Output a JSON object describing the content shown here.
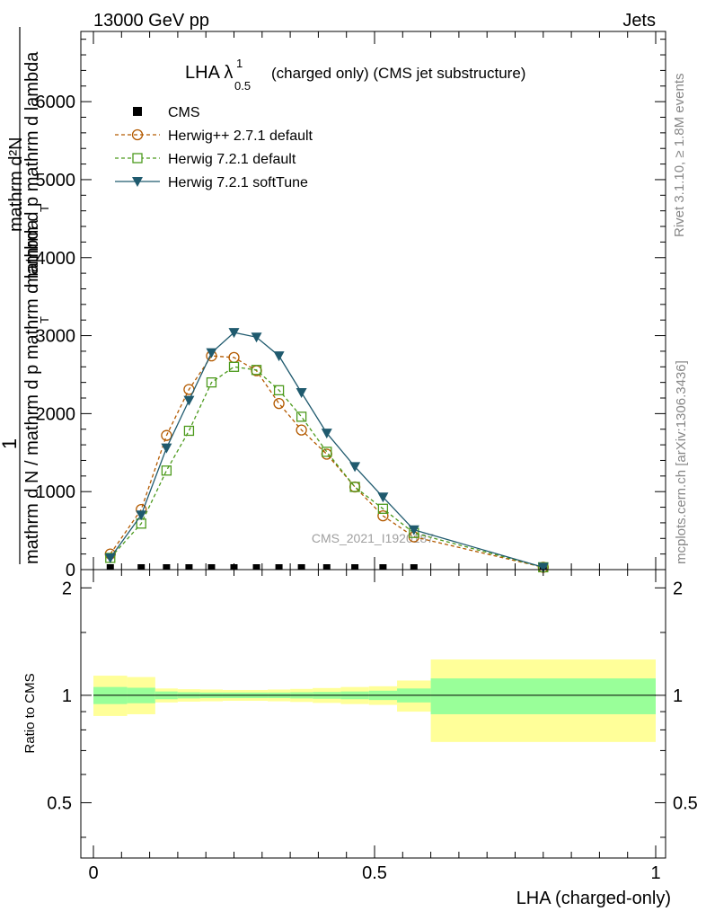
{
  "header": {
    "left": "13000 GeV pp",
    "right": "Jets"
  },
  "side": {
    "rivet": "Rivet 3.1.10, ≥ 1.8M events",
    "mcplots": "mcplots.cern.ch [arXiv:1306.3436]"
  },
  "watermark": "CMS_2021_I1920187",
  "chart_data": [
    {
      "type": "line",
      "title": "LHA λ",
      "title_sup": "1",
      "title_sub": "0.5",
      "title_rest": "(charged only) (CMS jet substructure)",
      "ylabel_num": "1",
      "ylabel_den": "mathrm d N / mathrm d p mathrm d lambda",
      "ylabel_den_sub": "T",
      "ylabel_overlay_top": "mathrm d²N",
      "ylabel_overlay_bottom": "mathrm d p  mathrm d lambda",
      "ylabel_overlay_sub": "T",
      "xlim": [
        0,
        1
      ],
      "ylim": [
        0,
        6900
      ],
      "yticks": [
        0,
        1000,
        2000,
        3000,
        4000,
        5000,
        6000
      ],
      "ytick_labels": [
        "0",
        "1000",
        "2000",
        "3000",
        "4000",
        "5000",
        "6000"
      ],
      "legend_position": "top-left",
      "series": [
        {
          "name": "CMS",
          "color": "#000000",
          "marker": "filled-square",
          "line": "none",
          "x": [
            0.03,
            0.085,
            0.13,
            0.17,
            0.21,
            0.25,
            0.29,
            0.33,
            0.37,
            0.415,
            0.465,
            0.515,
            0.57,
            0.8
          ],
          "y": [
            0,
            0,
            0,
            0,
            0,
            0,
            0,
            0,
            0,
            0,
            0,
            0,
            0,
            0
          ]
        },
        {
          "name": "Herwig++ 2.7.1 default",
          "color": "#b35a00",
          "marker": "open-circle",
          "line": "dashed",
          "x": [
            0.03,
            0.085,
            0.13,
            0.17,
            0.21,
            0.25,
            0.29,
            0.33,
            0.37,
            0.415,
            0.465,
            0.515,
            0.57,
            0.8
          ],
          "y": [
            200,
            770,
            1720,
            2310,
            2740,
            2720,
            2550,
            2130,
            1790,
            1480,
            1060,
            690,
            420,
            30
          ]
        },
        {
          "name": "Herwig 7.2.1 default",
          "color": "#4c9a1c",
          "marker": "open-square",
          "line": "dashed",
          "x": [
            0.03,
            0.085,
            0.13,
            0.17,
            0.21,
            0.25,
            0.29,
            0.33,
            0.37,
            0.415,
            0.465,
            0.515,
            0.57,
            0.8
          ],
          "y": [
            150,
            590,
            1270,
            1780,
            2400,
            2600,
            2560,
            2300,
            1960,
            1510,
            1060,
            780,
            470,
            30
          ]
        },
        {
          "name": "Herwig 7.2.1 softTune",
          "color": "#1f5a6e",
          "marker": "filled-triangle-down",
          "line": "solid",
          "x": [
            0.03,
            0.085,
            0.13,
            0.17,
            0.21,
            0.25,
            0.29,
            0.33,
            0.37,
            0.415,
            0.465,
            0.515,
            0.57,
            0.8
          ],
          "y": [
            150,
            700,
            1560,
            2170,
            2780,
            3040,
            2980,
            2740,
            2270,
            1750,
            1320,
            930,
            510,
            30
          ]
        }
      ]
    },
    {
      "type": "area",
      "ylabel": "Ratio to CMS",
      "xlabel": "LHA (charged-only)",
      "xlim": [
        0,
        1
      ],
      "ylim": [
        0.35,
        2.25
      ],
      "yticks": [
        0.5,
        1,
        2
      ],
      "ytick_labels": [
        "0.5",
        "1",
        "2"
      ],
      "xticks": [
        0,
        0.5,
        1
      ],
      "xtick_labels": [
        "0",
        "0.5",
        "1"
      ],
      "reference_line": 1,
      "bands": {
        "inner_color": "#99ff99",
        "outer_color": "#ffff99",
        "bins": [
          {
            "x0": 0.0,
            "x1": 0.06,
            "inner": [
              0.945,
              1.055
            ],
            "outer": [
              0.875,
              1.135
            ]
          },
          {
            "x0": 0.06,
            "x1": 0.11,
            "inner": [
              0.95,
              1.05
            ],
            "outer": [
              0.885,
              1.125
            ]
          },
          {
            "x0": 0.11,
            "x1": 0.15,
            "inner": [
              0.975,
              1.025
            ],
            "outer": [
              0.955,
              1.045
            ]
          },
          {
            "x0": 0.15,
            "x1": 0.19,
            "inner": [
              0.98,
              1.02
            ],
            "outer": [
              0.96,
              1.04
            ]
          },
          {
            "x0": 0.19,
            "x1": 0.23,
            "inner": [
              0.982,
              1.018
            ],
            "outer": [
              0.962,
              1.038
            ]
          },
          {
            "x0": 0.23,
            "x1": 0.27,
            "inner": [
              0.982,
              1.018
            ],
            "outer": [
              0.965,
              1.035
            ]
          },
          {
            "x0": 0.27,
            "x1": 0.31,
            "inner": [
              0.982,
              1.018
            ],
            "outer": [
              0.965,
              1.035
            ]
          },
          {
            "x0": 0.31,
            "x1": 0.35,
            "inner": [
              0.982,
              1.018
            ],
            "outer": [
              0.962,
              1.038
            ]
          },
          {
            "x0": 0.35,
            "x1": 0.39,
            "inner": [
              0.98,
              1.02
            ],
            "outer": [
              0.958,
              1.042
            ]
          },
          {
            "x0": 0.39,
            "x1": 0.44,
            "inner": [
              0.978,
              1.022
            ],
            "outer": [
              0.952,
              1.048
            ]
          },
          {
            "x0": 0.44,
            "x1": 0.49,
            "inner": [
              0.975,
              1.025
            ],
            "outer": [
              0.945,
              1.055
            ]
          },
          {
            "x0": 0.49,
            "x1": 0.54,
            "inner": [
              0.97,
              1.03
            ],
            "outer": [
              0.94,
              1.06
            ]
          },
          {
            "x0": 0.54,
            "x1": 0.6,
            "inner": [
              0.955,
              1.045
            ],
            "outer": [
              0.9,
              1.1
            ]
          },
          {
            "x0": 0.6,
            "x1": 1.0,
            "inner": [
              0.885,
              1.115
            ],
            "outer": [
              0.74,
              1.26
            ]
          }
        ]
      }
    }
  ]
}
